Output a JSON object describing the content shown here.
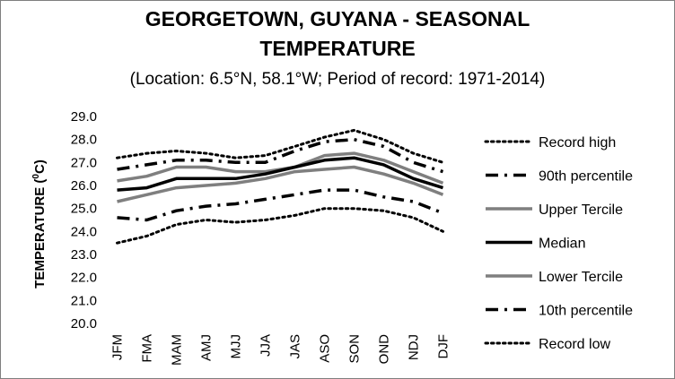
{
  "chart_data": {
    "type": "line",
    "title_line1": "GEORGETOWN, GUYANA - SEASONAL",
    "title_line2": "TEMPERATURE",
    "subtitle": "(Location: 6.5°N, 58.1°W; Period of record: 1971-2014)",
    "ylabel_main": "TEMPERATURE (",
    "ylabel_sup": "0",
    "ylabel_end": "C)",
    "xlabel": "",
    "ylim": [
      20.0,
      29.0
    ],
    "yticks": [
      "20.0",
      "21.0",
      "22.0",
      "23.0",
      "24.0",
      "25.0",
      "26.0",
      "27.0",
      "28.0",
      "29.0"
    ],
    "categories": [
      "JFM",
      "FMA",
      "MAM",
      "AMJ",
      "MJJ",
      "JJA",
      "JAS",
      "ASO",
      "SON",
      "OND",
      "NDJ",
      "DJF"
    ],
    "grid": false,
    "legend_position": "right",
    "series": [
      {
        "name": "Record high",
        "values": [
          27.2,
          27.4,
          27.5,
          27.4,
          27.2,
          27.3,
          27.7,
          28.1,
          28.4,
          28.0,
          27.4,
          27.0
        ],
        "color": "#000000",
        "style": "dotted"
      },
      {
        "name": "90th percentile",
        "values": [
          26.7,
          26.9,
          27.1,
          27.1,
          27.0,
          27.0,
          27.5,
          27.9,
          28.0,
          27.7,
          27.0,
          26.6
        ],
        "color": "#000000",
        "style": "dashdot"
      },
      {
        "name": "Upper Tercile",
        "values": [
          26.2,
          26.4,
          26.8,
          26.8,
          26.6,
          26.6,
          26.8,
          27.3,
          27.4,
          27.1,
          26.6,
          26.1
        ],
        "color": "#7f7f7f",
        "style": "solid"
      },
      {
        "name": "Median",
        "values": [
          25.8,
          25.9,
          26.3,
          26.3,
          26.3,
          26.5,
          26.8,
          27.1,
          27.2,
          26.9,
          26.3,
          25.9
        ],
        "color": "#000000",
        "style": "solid"
      },
      {
        "name": "Lower Tercile",
        "values": [
          25.3,
          25.6,
          25.9,
          26.0,
          26.1,
          26.3,
          26.6,
          26.7,
          26.8,
          26.5,
          26.1,
          25.6
        ],
        "color": "#7f7f7f",
        "style": "solid"
      },
      {
        "name": "10th percentile",
        "values": [
          24.6,
          24.5,
          24.9,
          25.1,
          25.2,
          25.4,
          25.6,
          25.8,
          25.8,
          25.5,
          25.3,
          24.8
        ],
        "color": "#000000",
        "style": "dashdot"
      },
      {
        "name": "Record low",
        "values": [
          23.5,
          23.8,
          24.3,
          24.5,
          24.4,
          24.5,
          24.7,
          25.0,
          25.0,
          24.9,
          24.6,
          24.0
        ],
        "color": "#000000",
        "style": "dotted"
      }
    ]
  }
}
